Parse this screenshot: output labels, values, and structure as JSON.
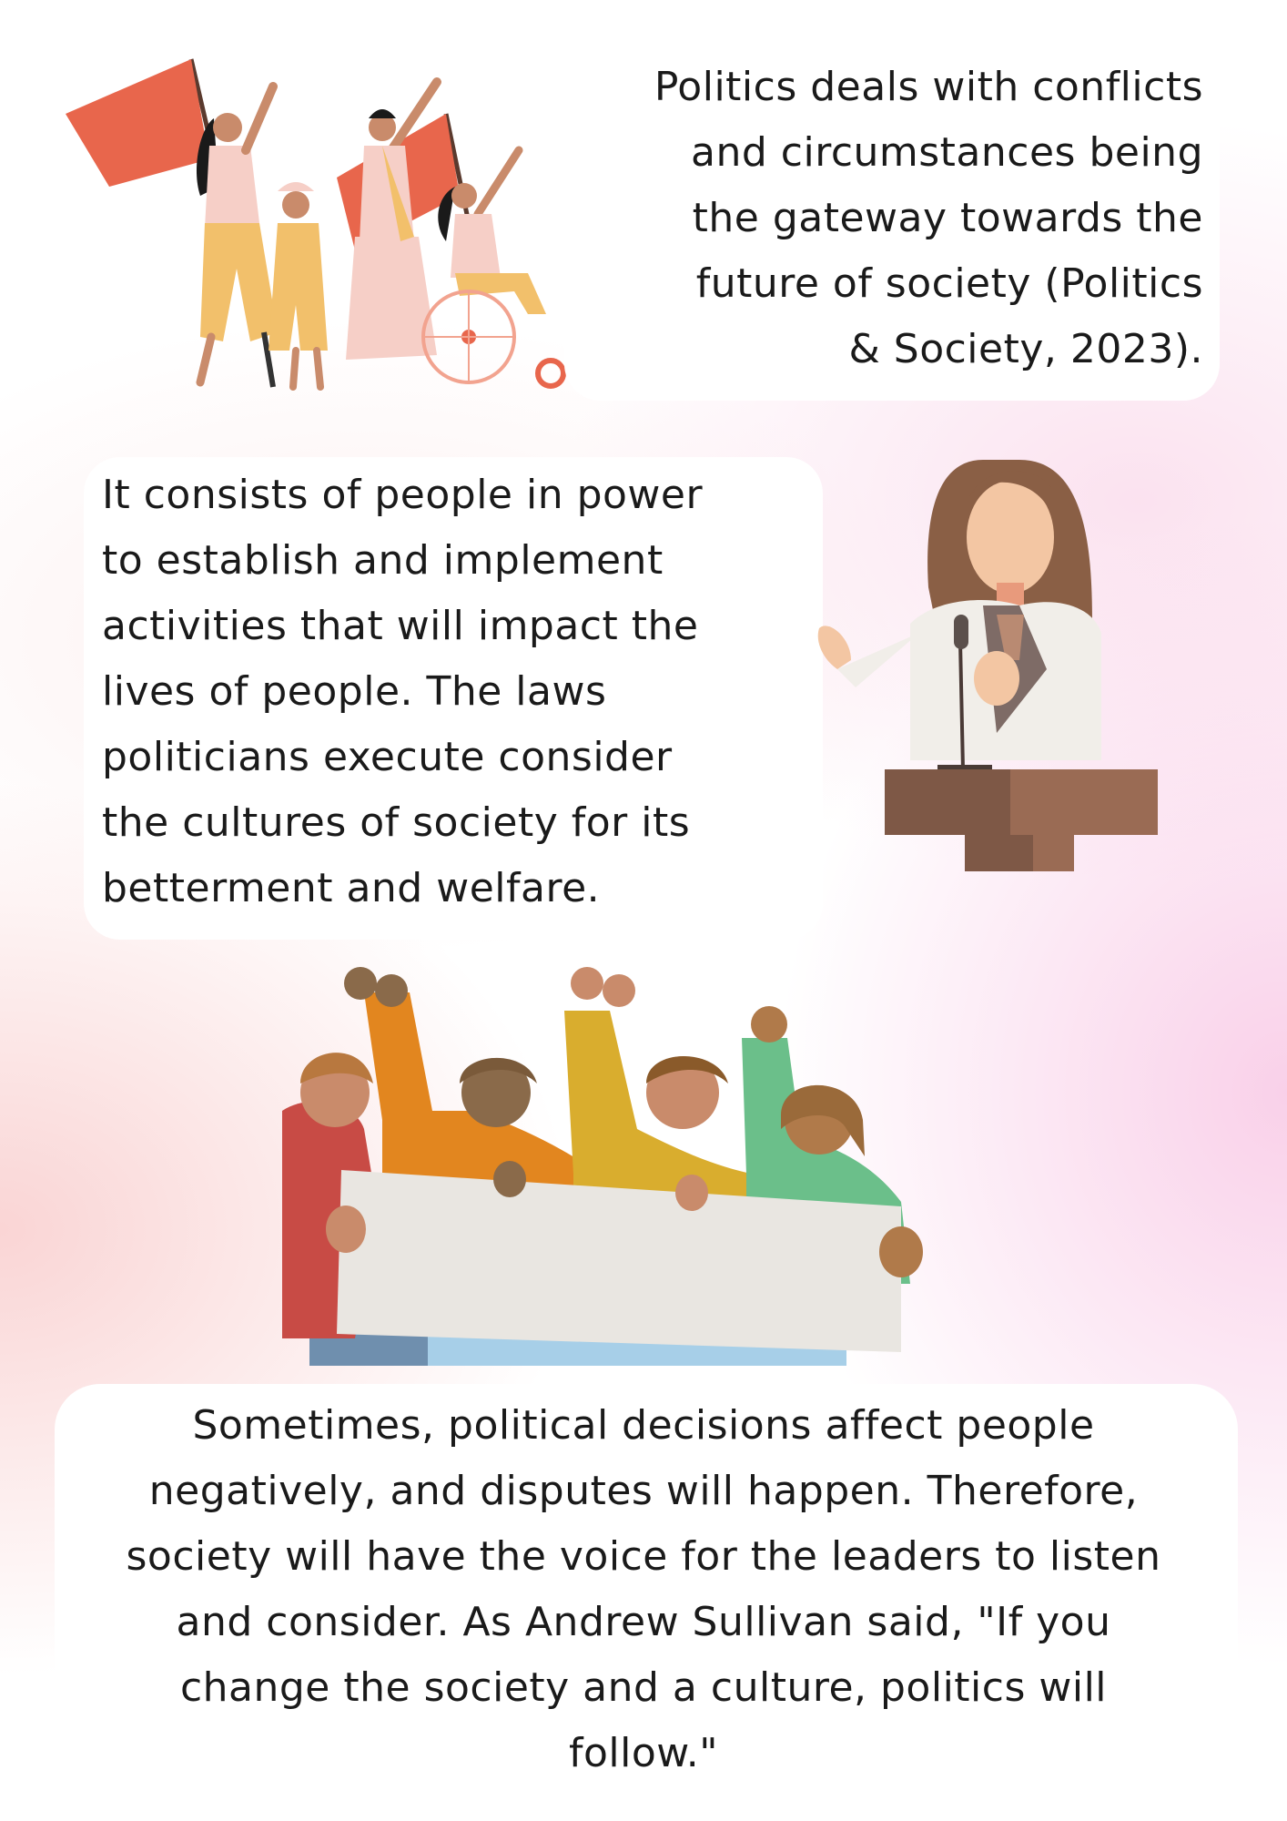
{
  "section1": {
    "lines": [
      "Politics deals with conflicts",
      "and circumstances being",
      "the gateway towards the",
      "future of society (Politics",
      "& Society, 2023)."
    ]
  },
  "section2": {
    "lines": [
      "It consists of people in power",
      "to establish and implement",
      "activities that will impact the",
      "lives of people. The laws",
      "politicians execute consider",
      "the cultures of society for its",
      "betterment and welfare."
    ]
  },
  "section3": {
    "lines": [
      "Sometimes, political decisions affect people",
      "negatively, and disputes will happen. Therefore,",
      "society will have the voice for the leaders to listen",
      "and consider. As Andrew Sullivan said, \"If you",
      "change the society and a culture, politics will",
      "follow.\""
    ]
  },
  "icons": {
    "rally": "women-rally-illustration-icon",
    "speaker": "woman-speaker-podium-icon",
    "protest": "protest-group-banner-icon"
  },
  "colors": {
    "flag": "#e8664c",
    "skin_tan": "#c98b6b",
    "pants": "#f2c06b",
    "top_pink": "#f6cfc7",
    "orange": "#e2861f",
    "mustard": "#d9ad2e",
    "green": "#6bbf8a",
    "red": "#c84b45",
    "banner": "#e9e6e1",
    "podium": "#7e5846"
  }
}
